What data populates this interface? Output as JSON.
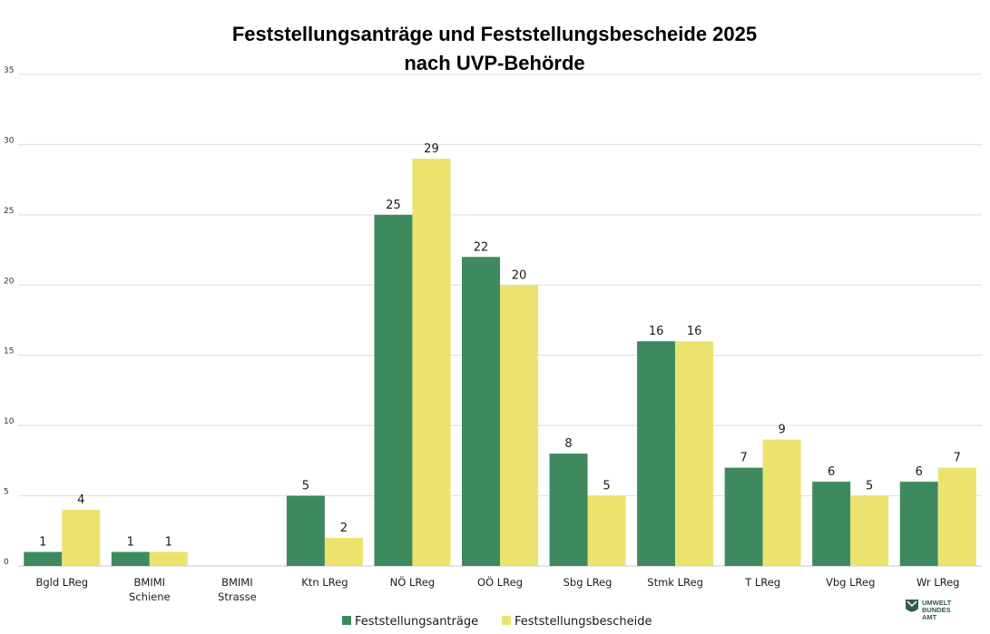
{
  "chart_data": {
    "type": "bar",
    "title": [
      "Feststellungsanträge und Feststellungsbescheide 2025",
      "nach UVP-Behörde"
    ],
    "categories": [
      [
        "Bgld LReg"
      ],
      [
        "BMIMI",
        "Schiene"
      ],
      [
        "BMIMI",
        "Strasse"
      ],
      [
        "Ktn LReg"
      ],
      [
        "NÖ LReg"
      ],
      [
        "OÖ LReg"
      ],
      [
        "Sbg LReg"
      ],
      [
        "Stmk LReg"
      ],
      [
        "T LReg"
      ],
      [
        "Vbg LReg"
      ],
      [
        "Wr LReg"
      ]
    ],
    "series": [
      {
        "name": "Feststellungsanträge",
        "color": "#3e8a5e",
        "values": [
          1,
          1,
          null,
          5,
          25,
          22,
          8,
          16,
          7,
          6,
          6
        ]
      },
      {
        "name": "Feststellungsbescheide",
        "color": "#ebe36e",
        "values": [
          4,
          1,
          null,
          2,
          29,
          20,
          5,
          16,
          9,
          5,
          7
        ]
      }
    ],
    "ylim": [
      0,
      35
    ],
    "yticks": [
      0,
      5,
      10,
      15,
      20,
      25,
      30,
      35
    ],
    "grid": true,
    "legend_position": "bottom"
  },
  "logo": {
    "lines": [
      "UMWELT",
      "BUNDES",
      "AMT"
    ],
    "color": "#2f5f45"
  }
}
